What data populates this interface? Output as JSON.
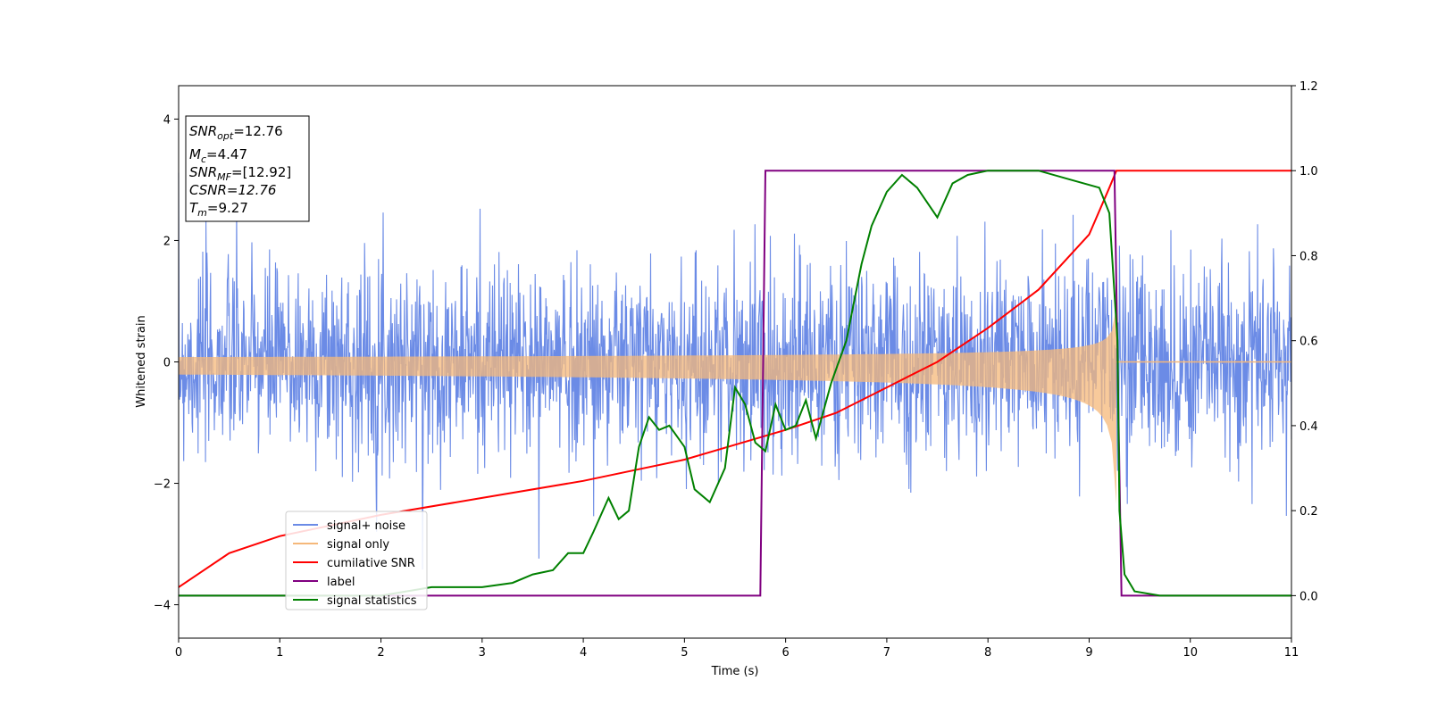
{
  "chart_data": {
    "type": "line",
    "xlabel": "Time (s)",
    "ylabel": "Whitened strain",
    "xlim": [
      0,
      11
    ],
    "ylim_left": [
      -4.55,
      4.55
    ],
    "ylim_right": [
      -0.1,
      1.2
    ],
    "x_ticks": [
      "0",
      "1",
      "2",
      "3",
      "4",
      "5",
      "6",
      "7",
      "8",
      "9",
      "10",
      "11"
    ],
    "y_left_ticks": [
      "4",
      "2",
      "0",
      "−2",
      "−4"
    ],
    "y_right_ticks": [
      "0.0",
      "0.2",
      "0.4",
      "0.6",
      "0.8",
      "1.0",
      "1.2"
    ],
    "legend_position": "lower-left",
    "series": [
      {
        "name": "signal+ noise",
        "color": "#6b8be6",
        "axis": "left",
        "noise_std": 0.8,
        "noise_seed": 7
      },
      {
        "name": "signal only",
        "color": "#f5b87a",
        "axis": "left",
        "amp_start": 0.08,
        "amp_end": 0.9,
        "t_merge": 9.27
      },
      {
        "name": "cumilative SNR",
        "color": "#ff0000",
        "axis": "right",
        "points": [
          [
            0,
            0.02
          ],
          [
            0.5,
            0.1
          ],
          [
            1,
            0.14
          ],
          [
            2,
            0.19
          ],
          [
            3,
            0.23
          ],
          [
            4,
            0.27
          ],
          [
            5,
            0.32
          ],
          [
            6,
            0.39
          ],
          [
            6.5,
            0.43
          ],
          [
            7,
            0.49
          ],
          [
            7.5,
            0.55
          ],
          [
            8,
            0.63
          ],
          [
            8.5,
            0.72
          ],
          [
            9,
            0.85
          ],
          [
            9.2,
            0.96
          ],
          [
            9.27,
            1.0
          ],
          [
            11,
            1.0
          ]
        ]
      },
      {
        "name": "label",
        "color": "#800080",
        "axis": "right",
        "points": [
          [
            0,
            0
          ],
          [
            5.75,
            0
          ],
          [
            5.8,
            1
          ],
          [
            9.25,
            1
          ],
          [
            9.32,
            0
          ],
          [
            11,
            0
          ]
        ]
      },
      {
        "name": "signal statistics",
        "color": "#008000",
        "axis": "right",
        "points": [
          [
            0,
            0
          ],
          [
            2,
            0.0
          ],
          [
            2.5,
            0.02
          ],
          [
            3.0,
            0.02
          ],
          [
            3.3,
            0.03
          ],
          [
            3.5,
            0.05
          ],
          [
            3.7,
            0.06
          ],
          [
            3.85,
            0.1
          ],
          [
            4.0,
            0.1
          ],
          [
            4.1,
            0.15
          ],
          [
            4.25,
            0.23
          ],
          [
            4.35,
            0.18
          ],
          [
            4.45,
            0.2
          ],
          [
            4.55,
            0.35
          ],
          [
            4.65,
            0.42
          ],
          [
            4.75,
            0.39
          ],
          [
            4.85,
            0.4
          ],
          [
            5.0,
            0.35
          ],
          [
            5.1,
            0.25
          ],
          [
            5.25,
            0.22
          ],
          [
            5.4,
            0.3
          ],
          [
            5.5,
            0.49
          ],
          [
            5.6,
            0.45
          ],
          [
            5.7,
            0.36
          ],
          [
            5.8,
            0.34
          ],
          [
            5.9,
            0.45
          ],
          [
            6.0,
            0.39
          ],
          [
            6.1,
            0.4
          ],
          [
            6.2,
            0.46
          ],
          [
            6.3,
            0.37
          ],
          [
            6.45,
            0.5
          ],
          [
            6.6,
            0.6
          ],
          [
            6.75,
            0.78
          ],
          [
            6.85,
            0.87
          ],
          [
            7.0,
            0.95
          ],
          [
            7.15,
            0.99
          ],
          [
            7.3,
            0.96
          ],
          [
            7.5,
            0.89
          ],
          [
            7.65,
            0.97
          ],
          [
            7.8,
            0.99
          ],
          [
            8.0,
            1.0
          ],
          [
            8.2,
            1.0
          ],
          [
            8.5,
            1.0
          ],
          [
            8.8,
            0.98
          ],
          [
            9.1,
            0.96
          ],
          [
            9.2,
            0.9
          ],
          [
            9.28,
            0.6
          ],
          [
            9.3,
            0.2
          ],
          [
            9.35,
            0.05
          ],
          [
            9.45,
            0.01
          ],
          [
            9.7,
            0.0
          ],
          [
            11,
            0.0
          ]
        ]
      }
    ]
  },
  "info_box": {
    "line1_main": "SNR",
    "line1_sub": "opt",
    "line1_rest": "=12.76",
    "line2_main": "M",
    "line2_sub": "c",
    "line2_rest": "=4.47",
    "line3_main": "SNR",
    "line3_sub": "MF",
    "line3_rest": "=[12.92]",
    "line4": "CSNR=12.76",
    "line5_main": "T",
    "line5_sub": "m",
    "line5_rest": "=9.27"
  }
}
